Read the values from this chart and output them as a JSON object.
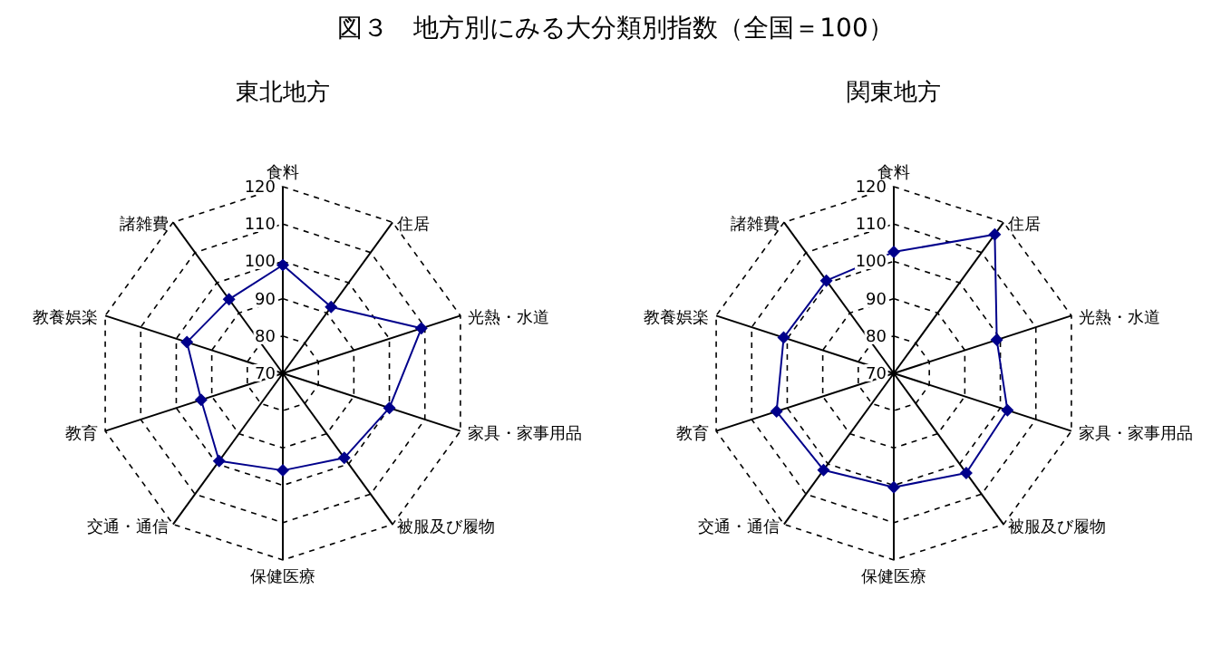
{
  "chart_data": [
    {
      "type": "radar",
      "title": "図３　地方別にみる大分類別指数（全国＝100）",
      "subtitle": "東北地方",
      "categories": [
        "食料",
        "住居",
        "光熱・水道",
        "家具・家事用品",
        "被服及び履物",
        "保健医療",
        "交通・通信",
        "教育",
        "教養娯楽",
        "諸雑費"
      ],
      "ylim": [
        70,
        120
      ],
      "yticks": [
        70,
        80,
        90,
        100,
        110,
        120
      ],
      "grid": true,
      "marker": "diamond",
      "line_style": "solid",
      "series": [
        {
          "color": "#00008b",
          "values": [
            99,
            92,
            109,
            100,
            98,
            96,
            99,
            93,
            97,
            94.5
          ]
        }
      ]
    },
    {
      "type": "radar",
      "subtitle": "関東地方",
      "categories": [
        "食料",
        "住居",
        "光熱・水道",
        "家具・家事用品",
        "被服及び履物",
        "保健医療",
        "交通・通信",
        "教育",
        "教養娯楽",
        "諸雑費"
      ],
      "ylim": [
        70,
        120
      ],
      "yticks": [
        70,
        80,
        90,
        100,
        110,
        120
      ],
      "grid": true,
      "marker": "diamond",
      "line_style": "solid",
      "series": [
        {
          "color": "#00008b",
          "values": [
            102.5,
            116,
            99,
            102,
            103,
            100.5,
            102,
            103,
            101,
            100.7
          ]
        }
      ]
    }
  ]
}
